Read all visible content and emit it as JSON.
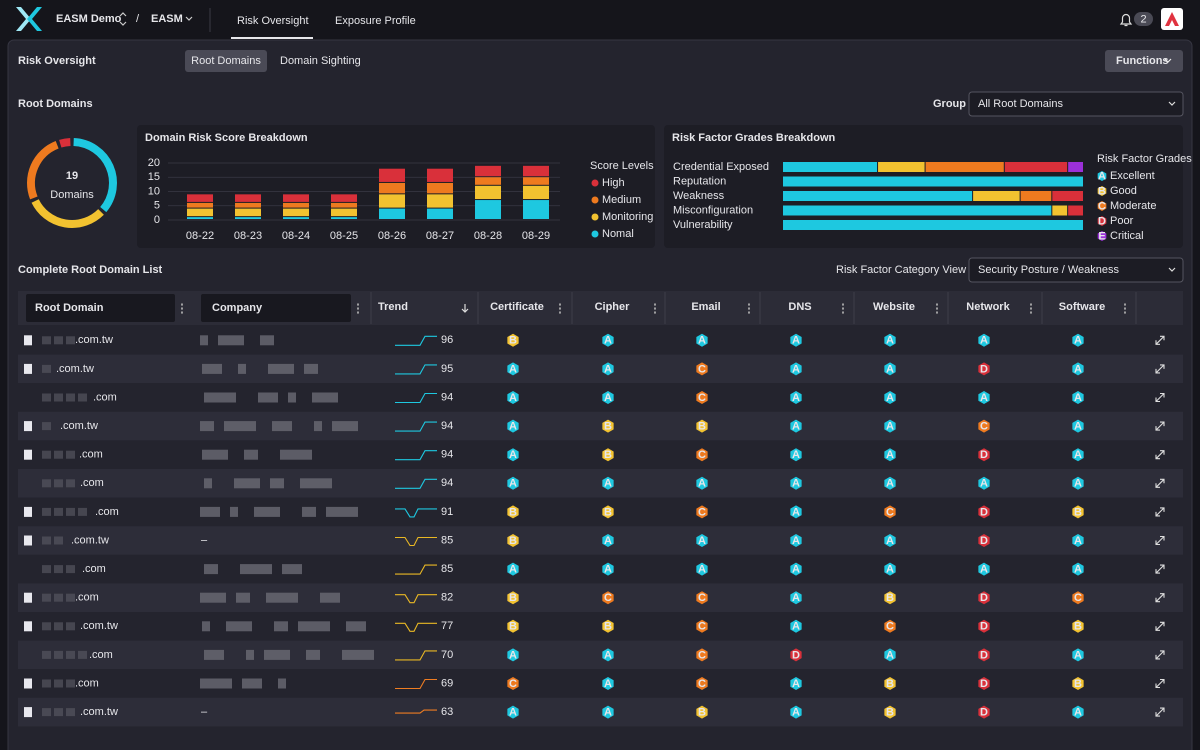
{
  "nav": {
    "org": "EASM Demo",
    "separator": "/",
    "product": "EASM",
    "tabs": [
      "Risk Oversight",
      "Exposure Profile"
    ],
    "notifications": 2
  },
  "header": {
    "title": "Risk Oversight",
    "views": [
      "Root Domains",
      "Domain Sighting"
    ],
    "functions": "Functions"
  },
  "section": {
    "title": "Root Domains",
    "group_label": "Group",
    "group_value": "All Root Domains"
  },
  "chart_data": [
    {
      "type": "donut",
      "total": 19,
      "total_label": "Domains",
      "values": [
        7,
        6,
        5,
        1
      ],
      "colors": [
        "#1ec8e0",
        "#f2c230",
        "#ee7a1f",
        "#d9303a"
      ]
    },
    {
      "type": "bar",
      "stacked": true,
      "title": "Domain Risk Score Breakdown",
      "categories": [
        "08-22",
        "08-23",
        "08-24",
        "08-25",
        "08-26",
        "08-27",
        "08-28",
        "08-29"
      ],
      "ylim": [
        0,
        20
      ],
      "yticks": [
        0,
        5,
        10,
        15,
        20
      ],
      "grid": true,
      "legend_title": "Score Levels",
      "series": [
        {
          "name": "High",
          "color": "#d9303a",
          "values": [
            3,
            3,
            3,
            3,
            5,
            5,
            4,
            4
          ]
        },
        {
          "name": "Medium",
          "color": "#ee7a1f",
          "values": [
            2,
            2,
            2,
            2,
            4,
            4,
            3,
            3
          ]
        },
        {
          "name": "Monitoring",
          "color": "#f2c230",
          "values": [
            3,
            3,
            3,
            3,
            5,
            5,
            5,
            5
          ]
        },
        {
          "name": "Nomal",
          "color": "#1ec8e0",
          "values": [
            1,
            1,
            1,
            1,
            4,
            4,
            7,
            7
          ]
        }
      ]
    },
    {
      "type": "hbar",
      "stacked": true,
      "title": "Risk Factor Grades Breakdown",
      "categories": [
        "Credential Exposed",
        "Reputation",
        "Weakness",
        "Misconfiguration",
        "Vulnerability"
      ],
      "legend_title": "Risk Factor Grades",
      "series": [
        {
          "name": "Excellent",
          "grade": "A",
          "color": "#1ec8e0",
          "values": [
            6,
            19,
            12,
            17,
            19
          ]
        },
        {
          "name": "Good",
          "grade": "B",
          "color": "#f2c230",
          "values": [
            3,
            0,
            3,
            1,
            0
          ]
        },
        {
          "name": "Moderate",
          "grade": "C",
          "color": "#ee7a1f",
          "values": [
            5,
            0,
            2,
            0,
            0
          ]
        },
        {
          "name": "Poor",
          "grade": "D",
          "color": "#d9303a",
          "values": [
            4,
            0,
            2,
            1,
            0
          ]
        },
        {
          "name": "Critical",
          "grade": "E",
          "color": "#9b30d9",
          "values": [
            1,
            0,
            0,
            0,
            0
          ]
        }
      ]
    }
  ],
  "table": {
    "title": "Complete Root Domain List",
    "view_label": "Risk Factor Category View",
    "view_value": "Security Posture / Weakness",
    "columns": [
      "Root Domain",
      "Company",
      "Trend",
      "Certificate",
      "Cipher",
      "Email",
      "DNS",
      "Website",
      "Network",
      "Software"
    ],
    "grade_colors": {
      "A": "#1ec8e0",
      "B": "#f2c230",
      "C": "#ee7a1f",
      "D": "#d9303a",
      "E": "#9b30d9"
    },
    "rows": [
      {
        "domain": ".com.tw",
        "company": null,
        "score": 96,
        "trend_color": "#1ec8e0",
        "grades": [
          "B",
          "A",
          "A",
          "A",
          "A",
          "A",
          "A"
        ]
      },
      {
        "domain": ".com.tw",
        "company": null,
        "score": 95,
        "trend_color": "#1ec8e0",
        "grades": [
          "A",
          "A",
          "C",
          "A",
          "A",
          "D",
          "A"
        ]
      },
      {
        "domain": ".com",
        "company": null,
        "score": 94,
        "trend_color": "#1ec8e0",
        "grades": [
          "A",
          "A",
          "C",
          "A",
          "A",
          "A",
          "A"
        ]
      },
      {
        "domain": ".com.tw",
        "company": null,
        "score": 94,
        "trend_color": "#1ec8e0",
        "grades": [
          "A",
          "B",
          "B",
          "A",
          "A",
          "C",
          "A"
        ]
      },
      {
        "domain": ".com",
        "company": null,
        "score": 94,
        "trend_color": "#1ec8e0",
        "grades": [
          "A",
          "B",
          "C",
          "A",
          "A",
          "D",
          "A"
        ]
      },
      {
        "domain": ".com",
        "company": null,
        "score": 94,
        "trend_color": "#1ec8e0",
        "grades": [
          "A",
          "A",
          "A",
          "A",
          "A",
          "A",
          "A"
        ]
      },
      {
        "domain": ".com",
        "company": null,
        "score": 91,
        "trend_color": "#1ec8e0",
        "grades": [
          "B",
          "B",
          "C",
          "A",
          "C",
          "D",
          "B"
        ]
      },
      {
        "domain": ".com.tw",
        "company": "–",
        "score": 85,
        "trend_color": "#e9b824",
        "grades": [
          "B",
          "A",
          "A",
          "A",
          "A",
          "D",
          "A"
        ]
      },
      {
        "domain": ".com",
        "company": null,
        "score": 85,
        "trend_color": "#e9b824",
        "grades": [
          "A",
          "A",
          "A",
          "A",
          "A",
          "A",
          "A"
        ]
      },
      {
        "domain": ".com",
        "company": null,
        "score": 82,
        "trend_color": "#e9b824",
        "grades": [
          "B",
          "C",
          "C",
          "A",
          "B",
          "D",
          "C"
        ]
      },
      {
        "domain": ".com.tw",
        "company": null,
        "score": 77,
        "trend_color": "#e9b824",
        "grades": [
          "B",
          "B",
          "C",
          "A",
          "C",
          "D",
          "B"
        ]
      },
      {
        "domain": ".com",
        "company": null,
        "score": 70,
        "trend_color": "#e9b824",
        "grades": [
          "A",
          "A",
          "C",
          "D",
          "A",
          "D",
          "A"
        ]
      },
      {
        "domain": ".com",
        "company": null,
        "score": 69,
        "trend_color": "#ef7d22",
        "grades": [
          "C",
          "A",
          "C",
          "A",
          "B",
          "D",
          "B"
        ]
      },
      {
        "domain": ".com.tw",
        "company": "–",
        "score": 63,
        "trend_color": "#ef7d22",
        "grades": [
          "A",
          "A",
          "B",
          "A",
          "B",
          "D",
          "A"
        ]
      }
    ]
  }
}
